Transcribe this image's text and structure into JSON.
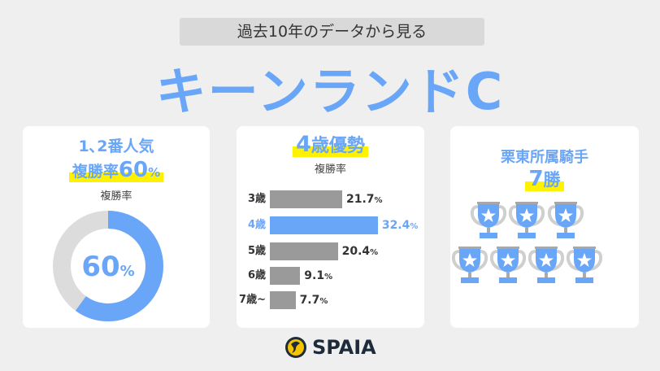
{
  "header": {
    "subtitle": "過去10年のデータから見る",
    "title": "キーンランドC"
  },
  "card1": {
    "line1": "1､2番人気",
    "line2": "複勝率",
    "line2_value": "60",
    "unit": "%",
    "label": "複勝率",
    "donut_value": "60",
    "donut_percent": 60,
    "colors": {
      "fill": "#6aa6f8",
      "track": "#dcdcdc"
    }
  },
  "card2": {
    "heading_num": "4",
    "heading_text": "歳優勢",
    "label": "複勝率",
    "chart_data": {
      "type": "bar",
      "categories": [
        "3歳",
        "4歳",
        "5歳",
        "6歳",
        "7歳~"
      ],
      "values": [
        21.7,
        32.4,
        20.4,
        9.1,
        7.7
      ],
      "labels": [
        "21.7",
        "32.4",
        "20.4",
        "9.1",
        "7.7"
      ],
      "unit": "%",
      "highlight": "4歳",
      "xlabel": "",
      "ylabel": "複勝率"
    }
  },
  "card3": {
    "line1": "栗東所属騎手",
    "line2_num": "7",
    "line2_text": "勝",
    "trophy_count": 7,
    "icon": "trophy-star-icon"
  },
  "footer": {
    "logo": "SPAIA"
  }
}
